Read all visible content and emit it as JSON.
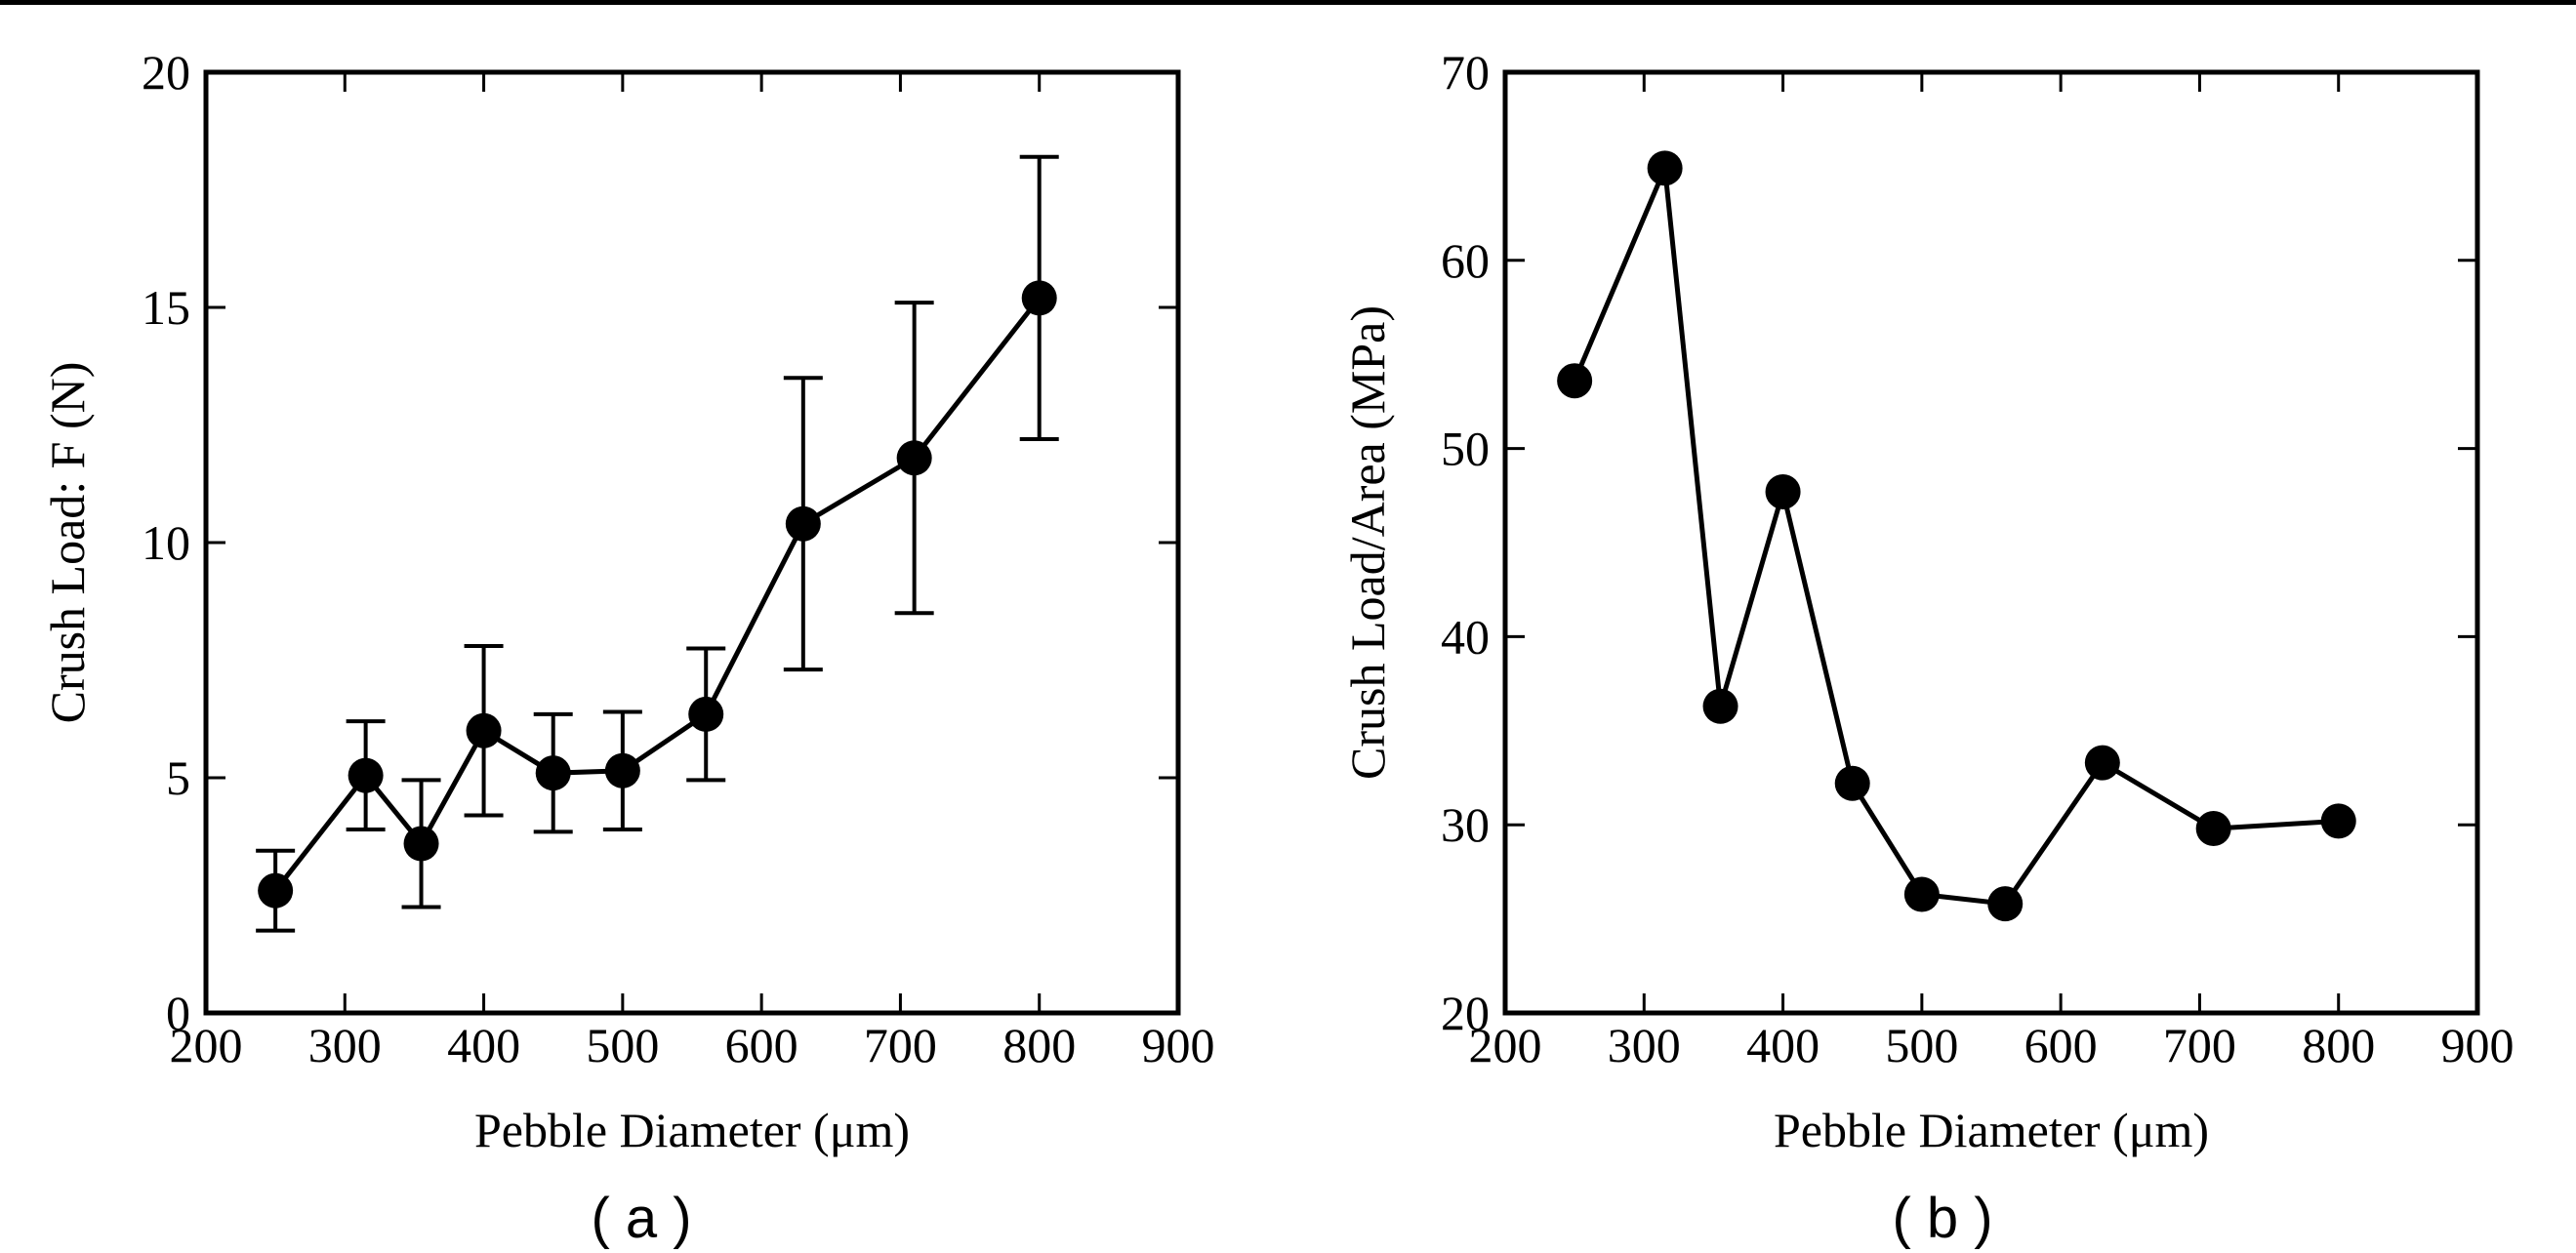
{
  "chart_data": [
    {
      "type": "line",
      "panel_label": "( a )",
      "xlabel": "Pebble Diameter (μm)",
      "ylabel": "Crush Load: F (N)",
      "xlim": [
        200,
        900
      ],
      "ylim": [
        0,
        20
      ],
      "x_ticks": [
        200,
        300,
        400,
        500,
        600,
        700,
        800,
        900
      ],
      "x_tick_labels": [
        "200",
        "300",
        "400",
        "500",
        "600",
        "700",
        "800",
        "900"
      ],
      "y_ticks": [
        0,
        5,
        10,
        15,
        20
      ],
      "y_tick_labels": [
        "0",
        "5",
        "10",
        "15",
        "20"
      ],
      "grid": false,
      "markers": "filled circle",
      "color": "#000000",
      "series": [
        {
          "x": [
            250,
            315,
            355,
            400,
            450,
            500,
            560,
            630,
            710,
            800
          ],
          "y": [
            2.6,
            5.05,
            3.6,
            6.0,
            5.1,
            5.15,
            6.35,
            10.4,
            11.8,
            15.2
          ],
          "error": [
            0.85,
            1.15,
            1.35,
            1.8,
            1.25,
            1.25,
            1.4,
            3.1,
            3.3,
            3.0
          ]
        }
      ]
    },
    {
      "type": "line",
      "panel_label": "( b )",
      "xlabel": "Pebble Diameter (μm)",
      "ylabel": "Crush Load/Area (MPa)",
      "xlim": [
        200,
        900
      ],
      "ylim": [
        20,
        70
      ],
      "x_ticks": [
        200,
        300,
        400,
        500,
        600,
        700,
        800,
        900
      ],
      "x_tick_labels": [
        "200",
        "300",
        "400",
        "500",
        "600",
        "700",
        "800",
        "900"
      ],
      "y_ticks": [
        20,
        30,
        40,
        50,
        60,
        70
      ],
      "y_tick_labels": [
        "20",
        "30",
        "40",
        "50",
        "60",
        "70"
      ],
      "grid": false,
      "markers": "filled circle",
      "color": "#000000",
      "series": [
        {
          "x": [
            250,
            315,
            355,
            400,
            450,
            500,
            560,
            630,
            710,
            800
          ],
          "y": [
            53.6,
            64.9,
            36.3,
            47.7,
            32.2,
            26.3,
            25.8,
            33.3,
            29.8,
            30.2
          ]
        }
      ]
    }
  ]
}
